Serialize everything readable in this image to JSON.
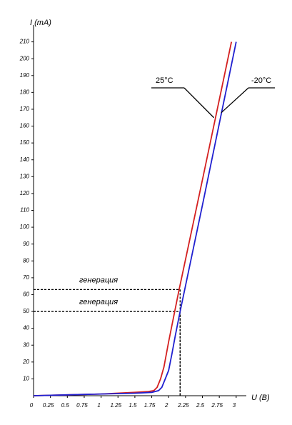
{
  "chart_data": {
    "type": "line",
    "y_label": "I (mA)",
    "x_label": "U (B)",
    "xlim": [
      0,
      3.15
    ],
    "ylim": [
      0,
      220
    ],
    "xticks": [
      0,
      0.25,
      0.5,
      0.75,
      1,
      1.25,
      1.5,
      1.75,
      2,
      2.25,
      2.5,
      2.75,
      3
    ],
    "yticks": [
      10,
      20,
      30,
      40,
      50,
      60,
      70,
      80,
      90,
      100,
      110,
      120,
      130,
      140,
      150,
      160,
      170,
      180,
      190,
      200,
      210
    ],
    "series": [
      {
        "name": "25°C",
        "color": "#d42020",
        "x": [
          0,
          0.5,
          1,
          1.5,
          1.7,
          1.78,
          1.83,
          1.88,
          1.93,
          2.0,
          2.15,
          2.5,
          2.93
        ],
        "values": [
          0,
          0.5,
          1,
          2,
          2.5,
          3,
          5,
          10,
          17,
          32,
          62,
          128,
          210
        ]
      },
      {
        "name": "-20°C",
        "color": "#2020d0",
        "x": [
          0,
          0.5,
          1,
          1.5,
          1.75,
          1.85,
          1.9,
          1.95,
          2.0,
          2.05,
          2.1,
          2.17,
          2.5,
          3.0
        ],
        "values": [
          0,
          0.5,
          1,
          1.5,
          2,
          3,
          5,
          10,
          15,
          25,
          36,
          50,
          113,
          210
        ]
      }
    ],
    "callouts": [
      {
        "series": 0,
        "x": 2.67,
        "y": 165
      },
      {
        "series": 1,
        "x": 2.78,
        "y": 168
      }
    ],
    "reference_lines": [
      {
        "label": "генерация",
        "y": 63,
        "x": 2.17
      },
      {
        "label": "генерация",
        "y": 50,
        "x": 2.17
      }
    ]
  }
}
